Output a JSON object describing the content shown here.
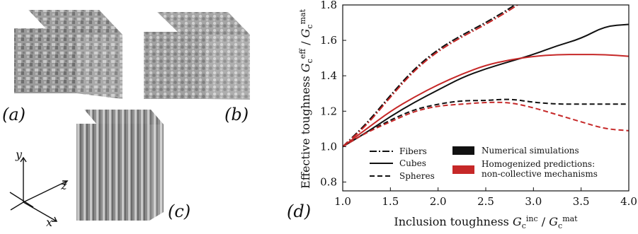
{
  "panels": {
    "a": "(a)",
    "b": "(b)",
    "c": "(c)",
    "d": "(d)"
  },
  "axes3d": {
    "y": "y",
    "z": "z",
    "x": "x"
  },
  "colors": {
    "black": "#111111",
    "red": "#c62828",
    "gray": "#8f8f8f"
  },
  "chart_data": {
    "type": "line",
    "title": "",
    "xlabel": "Inclusion toughness G_c^inc / G_c^mat",
    "ylabel": "Effective toughness G_c^eff / G_c^mat",
    "xlim": [
      1.0,
      4.0
    ],
    "ylim": [
      0.75,
      1.8
    ],
    "x_ticks": [
      "1.0",
      "1.5",
      "2.0",
      "2.5",
      "3.0",
      "3.5",
      "4.0"
    ],
    "y_ticks": [
      "0.8",
      "1.0",
      "1.2",
      "1.4",
      "1.6",
      "1.8"
    ],
    "grid": false,
    "legend_placement": "bottom",
    "legend": {
      "styles": [
        "Fibers",
        "Cubes",
        "Spheres"
      ],
      "colors": [
        "Numerical simulations",
        "Homogenized predictions:",
        "non-collective mechanisms"
      ]
    },
    "series": [
      {
        "name": "Fibers",
        "role": "Numerical simulations",
        "color": "#111111",
        "dash": "dashdot",
        "points": [
          [
            1.0,
            1.0
          ],
          [
            1.25,
            1.13
          ],
          [
            1.5,
            1.29
          ],
          [
            1.75,
            1.44
          ],
          [
            2.0,
            1.55
          ],
          [
            2.25,
            1.63
          ],
          [
            2.5,
            1.7
          ],
          [
            2.75,
            1.78
          ],
          [
            2.83,
            1.81
          ]
        ]
      },
      {
        "name": "Fibers",
        "role": "Homogenized predictions",
        "color": "#c62828",
        "dash": "dashdot",
        "points": [
          [
            1.0,
            1.0
          ],
          [
            1.25,
            1.12
          ],
          [
            1.5,
            1.28
          ],
          [
            1.75,
            1.43
          ],
          [
            2.0,
            1.54
          ],
          [
            2.25,
            1.62
          ],
          [
            2.5,
            1.69
          ],
          [
            2.75,
            1.77
          ],
          [
            2.86,
            1.81
          ]
        ]
      },
      {
        "name": "Cubes",
        "role": "Numerical simulations",
        "color": "#111111",
        "dash": "solid",
        "points": [
          [
            1.0,
            1.0
          ],
          [
            1.25,
            1.08
          ],
          [
            1.5,
            1.17
          ],
          [
            1.75,
            1.25
          ],
          [
            2.0,
            1.32
          ],
          [
            2.25,
            1.39
          ],
          [
            2.5,
            1.44
          ],
          [
            2.75,
            1.48
          ],
          [
            3.0,
            1.52
          ],
          [
            3.25,
            1.57
          ],
          [
            3.5,
            1.61
          ],
          [
            3.75,
            1.68
          ],
          [
            4.0,
            1.69
          ]
        ]
      },
      {
        "name": "Cubes",
        "role": "Homogenized predictions",
        "color": "#c62828",
        "dash": "solid",
        "points": [
          [
            1.0,
            1.0
          ],
          [
            1.25,
            1.1
          ],
          [
            1.5,
            1.2
          ],
          [
            1.75,
            1.28
          ],
          [
            2.0,
            1.35
          ],
          [
            2.25,
            1.41
          ],
          [
            2.5,
            1.46
          ],
          [
            2.75,
            1.49
          ],
          [
            3.0,
            1.51
          ],
          [
            3.25,
            1.52
          ],
          [
            3.5,
            1.52
          ],
          [
            3.75,
            1.52
          ],
          [
            4.0,
            1.51
          ]
        ]
      },
      {
        "name": "Spheres",
        "role": "Numerical simulations",
        "color": "#111111",
        "dash": "dashed",
        "points": [
          [
            1.0,
            1.0
          ],
          [
            1.25,
            1.08
          ],
          [
            1.5,
            1.15
          ],
          [
            1.75,
            1.21
          ],
          [
            2.0,
            1.24
          ],
          [
            2.25,
            1.26
          ],
          [
            2.5,
            1.26
          ],
          [
            2.75,
            1.27
          ],
          [
            3.0,
            1.25
          ],
          [
            3.25,
            1.24
          ],
          [
            3.5,
            1.24
          ],
          [
            3.75,
            1.24
          ],
          [
            4.0,
            1.24
          ]
        ]
      },
      {
        "name": "Spheres",
        "role": "Homogenized predictions",
        "color": "#c62828",
        "dash": "dashed",
        "points": [
          [
            1.0,
            1.0
          ],
          [
            1.25,
            1.08
          ],
          [
            1.5,
            1.14
          ],
          [
            1.75,
            1.2
          ],
          [
            2.0,
            1.23
          ],
          [
            2.25,
            1.24
          ],
          [
            2.5,
            1.25
          ],
          [
            2.75,
            1.25
          ],
          [
            3.0,
            1.22
          ],
          [
            3.25,
            1.18
          ],
          [
            3.5,
            1.14
          ],
          [
            3.75,
            1.1
          ],
          [
            4.0,
            1.09
          ]
        ]
      }
    ]
  }
}
